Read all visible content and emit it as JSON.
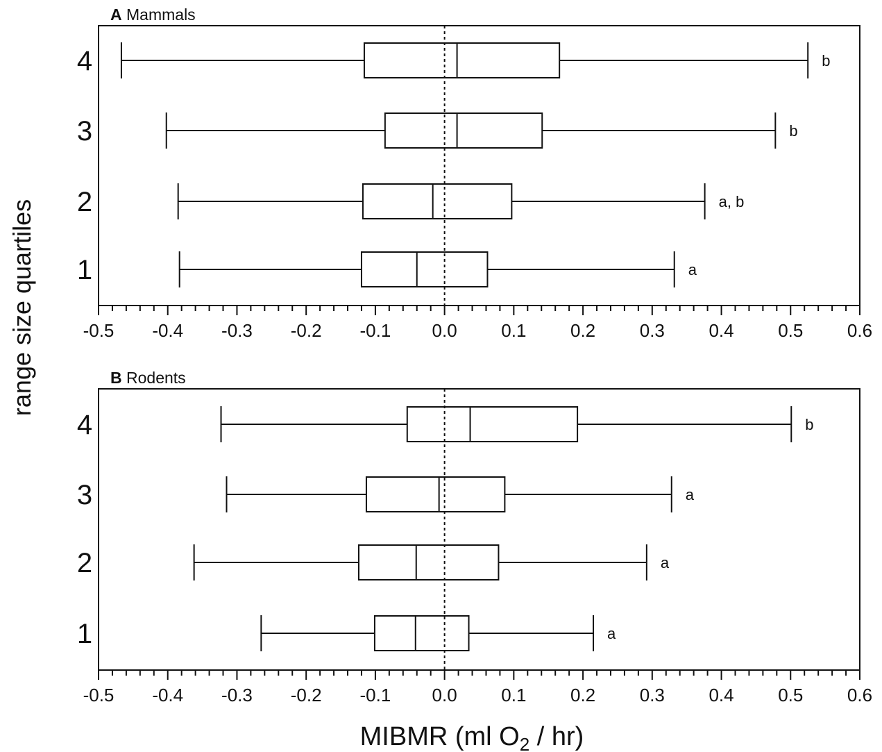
{
  "y_axis_label": "range size quartiles",
  "x_axis_label": {
    "prefix": "MIBMR (ml O",
    "subscript": "2",
    "suffix": " / hr)"
  },
  "chart_data": [
    {
      "type": "boxplot",
      "panel_letter": "A",
      "title": "Mammals",
      "orientation": "horizontal",
      "xlim": [
        -0.5,
        0.6
      ],
      "x_ticks": [
        "-0.5",
        "-0.4",
        "-0.3",
        "-0.2",
        "-0.1",
        "0.0",
        "0.1",
        "0.2",
        "0.3",
        "0.4",
        "0.5",
        "0.6"
      ],
      "categories": [
        "1",
        "2",
        "3",
        "4"
      ],
      "reference_line_x": 0.0,
      "boxes": [
        {
          "category": "1",
          "whisker_low": -0.383,
          "q1": -0.12,
          "median": -0.04,
          "q3": 0.062,
          "whisker_high": 0.332,
          "group_label": "a"
        },
        {
          "category": "2",
          "whisker_low": -0.385,
          "q1": -0.118,
          "median": -0.017,
          "q3": 0.097,
          "whisker_high": 0.376,
          "group_label": "a, b"
        },
        {
          "category": "3",
          "whisker_low": -0.402,
          "q1": -0.086,
          "median": 0.018,
          "q3": 0.141,
          "whisker_high": 0.478,
          "group_label": "b"
        },
        {
          "category": "4",
          "whisker_low": -0.467,
          "q1": -0.116,
          "median": 0.018,
          "q3": 0.166,
          "whisker_high": 0.525,
          "group_label": "b"
        }
      ]
    },
    {
      "type": "boxplot",
      "panel_letter": "B",
      "title": "Rodents",
      "orientation": "horizontal",
      "xlim": [
        -0.5,
        0.6
      ],
      "x_ticks": [
        "-0.5",
        "-0.4",
        "-0.3",
        "-0.2",
        "-0.1",
        "0.0",
        "0.1",
        "0.2",
        "0.3",
        "0.4",
        "0.5",
        "0.6"
      ],
      "categories": [
        "1",
        "2",
        "3",
        "4"
      ],
      "reference_line_x": 0.0,
      "boxes": [
        {
          "category": "1",
          "whisker_low": -0.265,
          "q1": -0.101,
          "median": -0.042,
          "q3": 0.035,
          "whisker_high": 0.215,
          "group_label": "a"
        },
        {
          "category": "2",
          "whisker_low": -0.362,
          "q1": -0.124,
          "median": -0.041,
          "q3": 0.078,
          "whisker_high": 0.292,
          "group_label": "a"
        },
        {
          "category": "3",
          "whisker_low": -0.315,
          "q1": -0.113,
          "median": -0.008,
          "q3": 0.087,
          "whisker_high": 0.328,
          "group_label": "a"
        },
        {
          "category": "4",
          "whisker_low": -0.323,
          "q1": -0.054,
          "median": 0.037,
          "q3": 0.192,
          "whisker_high": 0.501,
          "group_label": "b"
        }
      ]
    }
  ]
}
